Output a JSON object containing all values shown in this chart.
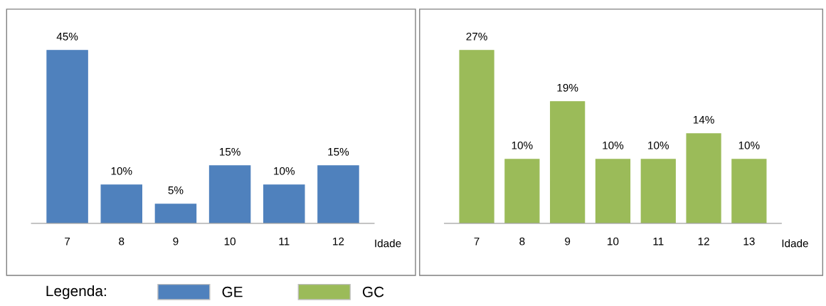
{
  "chart_data": [
    {
      "type": "bar",
      "xlabel": "Idade",
      "categories": [
        "7",
        "8",
        "9",
        "10",
        "11",
        "12"
      ],
      "legend": "bottom",
      "legend_title": "Legenda:",
      "series": [
        {
          "name": "GE",
          "color": "#4f81bd",
          "values": [
            45,
            10,
            5,
            15,
            10,
            15
          ],
          "value_labels": [
            "45%",
            "10%",
            "5%",
            "15%",
            "10%",
            "15%"
          ]
        }
      ]
    },
    {
      "type": "bar",
      "xlabel": "Idade",
      "categories": [
        "7",
        "8",
        "9",
        "10",
        "11",
        "12",
        "13"
      ],
      "legend": "bottom",
      "series": [
        {
          "name": "GC",
          "color": "#9bbb59",
          "values": [
            27,
            10,
            19,
            10,
            10,
            14,
            10
          ],
          "value_labels": [
            "27%",
            "10%",
            "19%",
            "10%",
            "10%",
            "14%",
            "10%"
          ]
        }
      ]
    }
  ]
}
